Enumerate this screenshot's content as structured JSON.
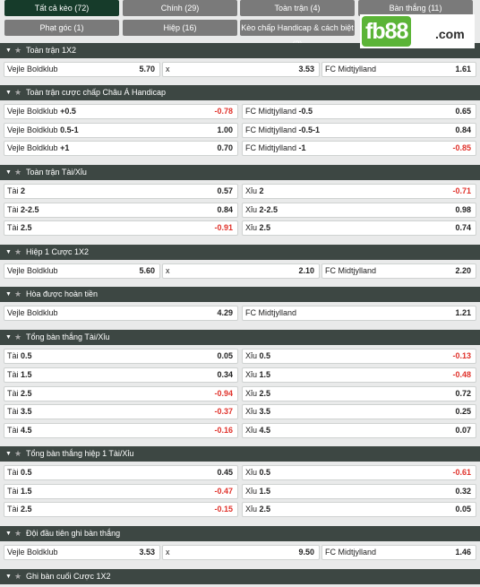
{
  "tabs": [
    {
      "label": "Tất cả kèo (72)",
      "active": true
    },
    {
      "label": "Chính (29)",
      "active": false
    },
    {
      "label": "Toàn trận (4)",
      "active": false
    },
    {
      "label": "Bàn thắng (11)",
      "active": false
    },
    {
      "label": "Phạt góc (1)",
      "active": false
    },
    {
      "label": "Hiệp (16)",
      "active": false
    },
    {
      "label": "Kèo chấp Handicap & cách biệt (3)",
      "active": false
    }
  ],
  "logo": {
    "name": "fb88",
    "tld": ".com"
  },
  "sections": [
    {
      "title": "Toàn trận 1X2",
      "rows": [
        [
          {
            "label": "Vejle Boldklub",
            "value": "5.70"
          },
          {
            "label": "x",
            "value": "3.53"
          },
          {
            "label": "FC Midtjylland",
            "value": "1.61"
          }
        ]
      ]
    },
    {
      "title": "Toàn trận cược chấp Châu Á Handicap",
      "rows": [
        [
          {
            "label": "Vejle Boldklub",
            "line": "+0.5",
            "value": "-0.78"
          },
          {
            "label": "FC Midtjylland",
            "line": "-0.5",
            "value": "0.65"
          }
        ],
        [
          {
            "label": "Vejle Boldklub",
            "line": "0.5-1",
            "value": "1.00"
          },
          {
            "label": "FC Midtjylland",
            "line": "-0.5-1",
            "value": "0.84"
          }
        ],
        [
          {
            "label": "Vejle Boldklub",
            "line": "+1",
            "value": "0.70"
          },
          {
            "label": "FC Midtjylland",
            "line": "-1",
            "value": "-0.85"
          }
        ]
      ]
    },
    {
      "title": "Toàn trận Tài/Xỉu",
      "rows": [
        [
          {
            "label": "Tài",
            "line": "2",
            "value": "0.57"
          },
          {
            "label": "Xỉu",
            "line": "2",
            "value": "-0.71"
          }
        ],
        [
          {
            "label": "Tài",
            "line": "2-2.5",
            "value": "0.84"
          },
          {
            "label": "Xỉu",
            "line": "2-2.5",
            "value": "0.98"
          }
        ],
        [
          {
            "label": "Tài",
            "line": "2.5",
            "value": "-0.91"
          },
          {
            "label": "Xỉu",
            "line": "2.5",
            "value": "0.74"
          }
        ]
      ]
    },
    {
      "title": "Hiệp 1 Cược 1X2",
      "rows": [
        [
          {
            "label": "Vejle Boldklub",
            "value": "5.60"
          },
          {
            "label": "x",
            "value": "2.10"
          },
          {
            "label": "FC Midtjylland",
            "value": "2.20"
          }
        ]
      ]
    },
    {
      "title": "Hòa được hoàn tiền",
      "rows": [
        [
          {
            "label": "Vejle Boldklub",
            "value": "4.29"
          },
          {
            "label": "FC Midtjylland",
            "value": "1.21"
          }
        ]
      ]
    },
    {
      "title": "Tổng bàn thắng Tài/Xỉu",
      "rows": [
        [
          {
            "label": "Tài",
            "line": "0.5",
            "value": "0.05"
          },
          {
            "label": "Xỉu",
            "line": "0.5",
            "value": "-0.13"
          }
        ],
        [
          {
            "label": "Tài",
            "line": "1.5",
            "value": "0.34"
          },
          {
            "label": "Xỉu",
            "line": "1.5",
            "value": "-0.48"
          }
        ],
        [
          {
            "label": "Tài",
            "line": "2.5",
            "value": "-0.94"
          },
          {
            "label": "Xỉu",
            "line": "2.5",
            "value": "0.72"
          }
        ],
        [
          {
            "label": "Tài",
            "line": "3.5",
            "value": "-0.37"
          },
          {
            "label": "Xỉu",
            "line": "3.5",
            "value": "0.25"
          }
        ],
        [
          {
            "label": "Tài",
            "line": "4.5",
            "value": "-0.16"
          },
          {
            "label": "Xỉu",
            "line": "4.5",
            "value": "0.07"
          }
        ]
      ]
    },
    {
      "title": "Tổng bàn thắng hiệp 1 Tài/Xỉu",
      "rows": [
        [
          {
            "label": "Tài",
            "line": "0.5",
            "value": "0.45"
          },
          {
            "label": "Xỉu",
            "line": "0.5",
            "value": "-0.61"
          }
        ],
        [
          {
            "label": "Tài",
            "line": "1.5",
            "value": "-0.47"
          },
          {
            "label": "Xỉu",
            "line": "1.5",
            "value": "0.32"
          }
        ],
        [
          {
            "label": "Tài",
            "line": "2.5",
            "value": "-0.15"
          },
          {
            "label": "Xỉu",
            "line": "2.5",
            "value": "0.05"
          }
        ]
      ]
    },
    {
      "title": "Đội đầu tiên ghi bàn thắng",
      "rows": [
        [
          {
            "label": "Vejle Boldklub",
            "value": "3.53"
          },
          {
            "label": "x",
            "value": "9.50"
          },
          {
            "label": "FC Midtjylland",
            "value": "1.46"
          }
        ]
      ]
    },
    {
      "title": "Ghi bàn cuối Cược 1X2",
      "rows": []
    }
  ],
  "colors": {
    "header": "#3d4743",
    "tab_active": "#163b2a",
    "tab": "#7a7a7a",
    "negative": "#e0322b",
    "logo_green": "#5bb437"
  }
}
